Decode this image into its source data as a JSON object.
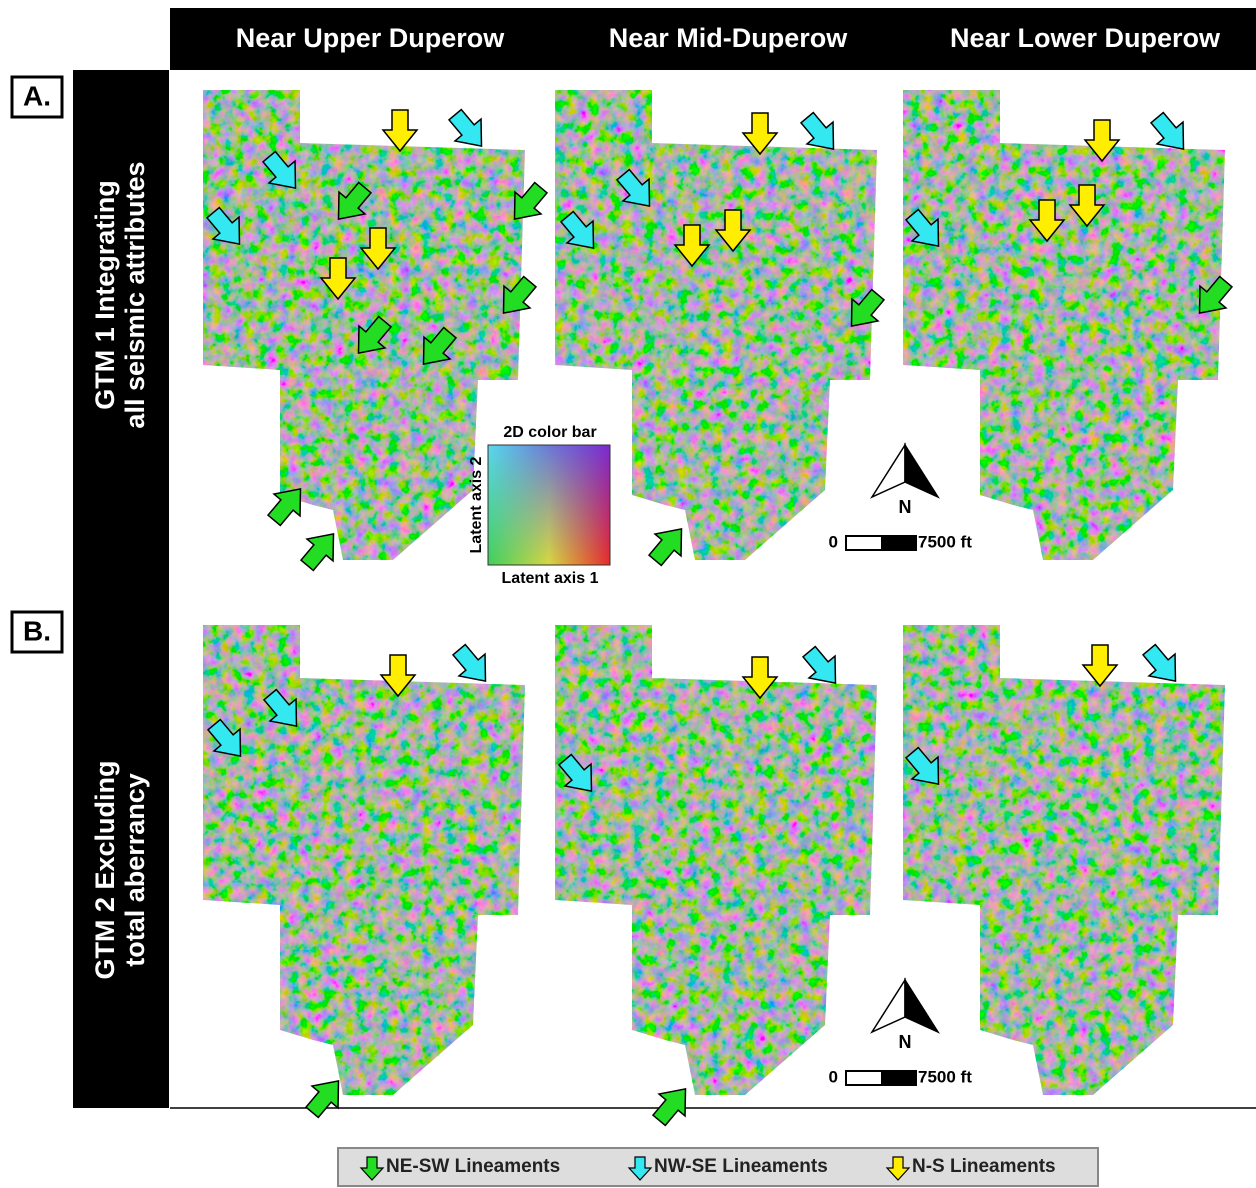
{
  "header": {
    "columns": [
      "Near Upper Duperow",
      "Near Mid-Duperow",
      "Near Lower Duperow"
    ]
  },
  "rows": [
    {
      "letter": "A.",
      "label_lines": [
        "GTM 1 Integrating",
        "all seismic attributes"
      ]
    },
    {
      "letter": "B.",
      "label_lines": [
        "GTM 2 Excluding",
        "total aberrancy"
      ]
    }
  ],
  "color_bar": {
    "title": "2D color bar",
    "y_axis": "Latent axis 2",
    "x_axis": "Latent axis 1"
  },
  "north_labels": [
    "N",
    "N"
  ],
  "scale_bars": [
    {
      "start": "0",
      "end": "7500 ft"
    },
    {
      "start": "0",
      "end": "7500 ft"
    }
  ],
  "legend": [
    "NE-SW Lineaments",
    "NW-SE Lineaments",
    "N-S Lineaments"
  ]
}
